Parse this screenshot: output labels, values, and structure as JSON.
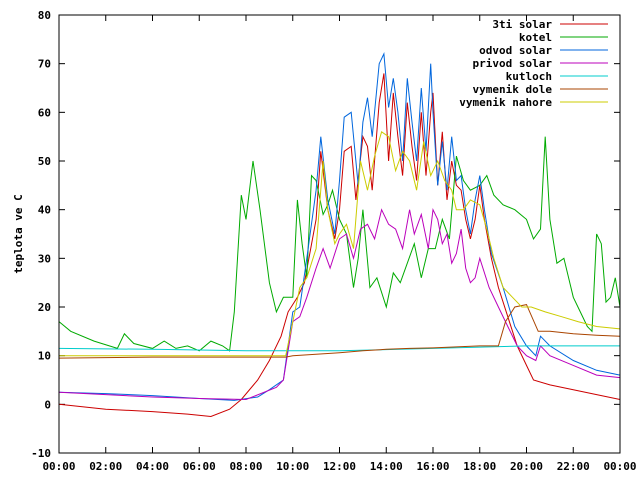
{
  "chart_data": {
    "type": "line",
    "title": "",
    "xlabel": "",
    "ylabel": "teplota ve C",
    "xlim": [
      0,
      24
    ],
    "ylim": [
      -10,
      80
    ],
    "x_tick_labels": [
      "00:00",
      "02:00",
      "04:00",
      "06:00",
      "08:00",
      "10:00",
      "12:00",
      "14:00",
      "16:00",
      "18:00",
      "20:00",
      "22:00",
      "00:00"
    ],
    "y_tick_labels": [
      "-10",
      "0",
      "10",
      "20",
      "30",
      "40",
      "50",
      "60",
      "70",
      "80"
    ],
    "grid": false,
    "legend_position": "top-right",
    "series": [
      {
        "name": "3ti solar",
        "color": "#cc0000",
        "points": [
          [
            0,
            0
          ],
          [
            2,
            -1
          ],
          [
            4,
            -1.5
          ],
          [
            5.5,
            -2
          ],
          [
            6.5,
            -2.5
          ],
          [
            7.3,
            -1
          ],
          [
            7.8,
            1
          ],
          [
            8.5,
            5
          ],
          [
            9,
            9
          ],
          [
            9.5,
            14
          ],
          [
            9.8,
            19
          ],
          [
            10.2,
            22
          ],
          [
            10.5,
            25
          ],
          [
            11,
            38
          ],
          [
            11.2,
            52
          ],
          [
            11.5,
            40
          ],
          [
            11.8,
            34
          ],
          [
            12,
            40
          ],
          [
            12.2,
            52
          ],
          [
            12.5,
            53
          ],
          [
            12.7,
            42
          ],
          [
            13,
            55
          ],
          [
            13.2,
            53
          ],
          [
            13.4,
            44
          ],
          [
            13.7,
            62
          ],
          [
            13.9,
            68
          ],
          [
            14.1,
            50
          ],
          [
            14.3,
            64
          ],
          [
            14.5,
            55
          ],
          [
            14.7,
            47
          ],
          [
            14.9,
            62
          ],
          [
            15.1,
            53
          ],
          [
            15.3,
            46
          ],
          [
            15.5,
            60
          ],
          [
            15.7,
            47
          ],
          [
            15.9,
            60
          ],
          [
            16,
            64
          ],
          [
            16.2,
            45
          ],
          [
            16.4,
            56
          ],
          [
            16.6,
            42
          ],
          [
            16.8,
            50
          ],
          [
            17,
            45
          ],
          [
            17.2,
            44
          ],
          [
            17.4,
            38
          ],
          [
            17.6,
            34
          ],
          [
            17.8,
            38
          ],
          [
            18,
            45
          ],
          [
            18.2,
            38
          ],
          [
            18.5,
            30
          ],
          [
            18.8,
            24
          ],
          [
            19.2,
            18
          ],
          [
            19.6,
            12
          ],
          [
            20,
            8
          ],
          [
            20.3,
            5
          ],
          [
            21,
            4
          ],
          [
            22,
            3
          ],
          [
            23,
            2
          ],
          [
            24,
            1
          ]
        ]
      },
      {
        "name": "kotel",
        "color": "#00aa00",
        "points": [
          [
            0,
            17
          ],
          [
            0.5,
            15
          ],
          [
            1.5,
            13
          ],
          [
            2.5,
            11.5
          ],
          [
            2.8,
            14.5
          ],
          [
            3.2,
            12.5
          ],
          [
            4,
            11.5
          ],
          [
            4.5,
            13
          ],
          [
            5,
            11.5
          ],
          [
            5.5,
            12
          ],
          [
            6,
            11
          ],
          [
            6.5,
            13
          ],
          [
            7,
            12
          ],
          [
            7.3,
            11
          ],
          [
            7.5,
            19
          ],
          [
            7.8,
            43
          ],
          [
            8,
            38
          ],
          [
            8.3,
            50
          ],
          [
            8.6,
            40
          ],
          [
            9,
            25
          ],
          [
            9.3,
            19
          ],
          [
            9.6,
            22
          ],
          [
            10,
            22
          ],
          [
            10.2,
            42
          ],
          [
            10.4,
            33
          ],
          [
            10.6,
            26
          ],
          [
            10.8,
            47
          ],
          [
            11,
            46
          ],
          [
            11.3,
            39
          ],
          [
            11.5,
            41
          ],
          [
            11.7,
            44
          ],
          [
            12,
            38
          ],
          [
            12.3,
            35
          ],
          [
            12.6,
            24
          ],
          [
            12.8,
            30
          ],
          [
            13,
            40
          ],
          [
            13.3,
            24
          ],
          [
            13.6,
            26
          ],
          [
            14,
            20
          ],
          [
            14.3,
            27
          ],
          [
            14.6,
            25
          ],
          [
            14.9,
            29
          ],
          [
            15.2,
            33
          ],
          [
            15.5,
            26
          ],
          [
            15.8,
            32
          ],
          [
            16.1,
            32
          ],
          [
            16.4,
            38
          ],
          [
            16.7,
            34
          ],
          [
            17,
            51
          ],
          [
            17.3,
            46
          ],
          [
            17.6,
            44
          ],
          [
            18,
            45
          ],
          [
            18.3,
            47
          ],
          [
            18.6,
            43
          ],
          [
            19,
            41
          ],
          [
            19.5,
            40
          ],
          [
            20,
            38
          ],
          [
            20.3,
            34
          ],
          [
            20.6,
            36
          ],
          [
            20.8,
            55
          ],
          [
            21,
            38
          ],
          [
            21.3,
            29
          ],
          [
            21.6,
            30
          ],
          [
            22,
            22
          ],
          [
            22.3,
            19
          ],
          [
            22.6,
            16
          ],
          [
            22.8,
            15
          ],
          [
            23,
            35
          ],
          [
            23.2,
            33
          ],
          [
            23.4,
            21
          ],
          [
            23.6,
            22
          ],
          [
            23.8,
            26
          ],
          [
            24,
            20
          ]
        ]
      },
      {
        "name": "odvod solar",
        "color": "#0066dd",
        "points": [
          [
            0,
            2.5
          ],
          [
            2,
            2.2
          ],
          [
            4,
            1.8
          ],
          [
            6,
            1.2
          ],
          [
            7.5,
            0.8
          ],
          [
            8.5,
            1.5
          ],
          [
            9,
            3
          ],
          [
            9.6,
            5
          ],
          [
            10,
            19
          ],
          [
            10.3,
            20
          ],
          [
            10.6,
            30
          ],
          [
            11,
            44
          ],
          [
            11.2,
            55
          ],
          [
            11.5,
            42
          ],
          [
            11.8,
            35
          ],
          [
            12,
            46
          ],
          [
            12.2,
            59
          ],
          [
            12.5,
            60
          ],
          [
            12.8,
            45
          ],
          [
            13,
            58
          ],
          [
            13.2,
            63
          ],
          [
            13.4,
            55
          ],
          [
            13.7,
            70
          ],
          [
            13.9,
            72
          ],
          [
            14.1,
            61
          ],
          [
            14.3,
            67
          ],
          [
            14.5,
            60
          ],
          [
            14.7,
            50
          ],
          [
            14.9,
            67
          ],
          [
            15.1,
            58
          ],
          [
            15.3,
            50
          ],
          [
            15.5,
            65
          ],
          [
            15.7,
            52
          ],
          [
            15.9,
            70
          ],
          [
            16,
            60
          ],
          [
            16.2,
            45
          ],
          [
            16.4,
            54
          ],
          [
            16.6,
            44
          ],
          [
            16.8,
            55
          ],
          [
            17,
            46
          ],
          [
            17.2,
            47
          ],
          [
            17.4,
            40
          ],
          [
            17.6,
            35
          ],
          [
            17.8,
            42
          ],
          [
            18,
            47
          ],
          [
            18.2,
            40
          ],
          [
            18.5,
            31
          ],
          [
            19,
            24
          ],
          [
            19.5,
            16
          ],
          [
            20,
            12
          ],
          [
            20.4,
            10
          ],
          [
            20.6,
            14
          ],
          [
            21,
            12
          ],
          [
            22,
            9
          ],
          [
            23,
            7
          ],
          [
            24,
            6
          ]
        ]
      },
      {
        "name": "privod solar",
        "color": "#bb00bb",
        "points": [
          [
            0,
            2.5
          ],
          [
            2,
            2
          ],
          [
            4,
            1.5
          ],
          [
            6,
            1.2
          ],
          [
            8,
            1
          ],
          [
            9.3,
            3.5
          ],
          [
            9.6,
            5
          ],
          [
            10,
            17
          ],
          [
            10.3,
            18
          ],
          [
            10.6,
            22
          ],
          [
            11,
            28
          ],
          [
            11.3,
            32
          ],
          [
            11.6,
            28
          ],
          [
            12,
            34
          ],
          [
            12.3,
            35
          ],
          [
            12.6,
            30
          ],
          [
            12.9,
            36
          ],
          [
            13.2,
            37
          ],
          [
            13.5,
            34
          ],
          [
            13.8,
            40
          ],
          [
            14.1,
            37
          ],
          [
            14.4,
            36
          ],
          [
            14.7,
            32
          ],
          [
            15,
            40
          ],
          [
            15.2,
            35
          ],
          [
            15.5,
            39
          ],
          [
            15.8,
            32
          ],
          [
            16,
            40
          ],
          [
            16.2,
            38
          ],
          [
            16.4,
            33
          ],
          [
            16.6,
            35
          ],
          [
            16.8,
            29
          ],
          [
            17,
            31
          ],
          [
            17.2,
            36
          ],
          [
            17.4,
            28
          ],
          [
            17.6,
            25
          ],
          [
            17.8,
            26
          ],
          [
            18,
            30
          ],
          [
            18.4,
            24
          ],
          [
            18.8,
            20
          ],
          [
            19.2,
            16
          ],
          [
            19.6,
            12
          ],
          [
            20,
            10
          ],
          [
            20.4,
            9
          ],
          [
            20.6,
            12
          ],
          [
            21,
            10
          ],
          [
            22,
            8
          ],
          [
            23,
            6
          ],
          [
            24,
            5.5
          ]
        ]
      },
      {
        "name": "kutloch",
        "color": "#00cccc",
        "points": [
          [
            0,
            11.5
          ],
          [
            4,
            11.3
          ],
          [
            8,
            11
          ],
          [
            12,
            11
          ],
          [
            16,
            11.5
          ],
          [
            20,
            12
          ],
          [
            24,
            12
          ]
        ]
      },
      {
        "name": "vymenik dole",
        "color": "#aa4400",
        "points": [
          [
            0,
            9.5
          ],
          [
            2,
            9.6
          ],
          [
            4,
            9.7
          ],
          [
            6,
            9.7
          ],
          [
            8,
            9.7
          ],
          [
            9.7,
            9.7
          ],
          [
            10,
            10
          ],
          [
            11,
            10.3
          ],
          [
            12,
            10.6
          ],
          [
            13,
            11
          ],
          [
            14,
            11.3
          ],
          [
            15,
            11.5
          ],
          [
            16,
            11.6
          ],
          [
            17,
            11.8
          ],
          [
            18,
            12
          ],
          [
            18.8,
            12
          ],
          [
            19.1,
            17
          ],
          [
            19.5,
            20
          ],
          [
            20,
            20.5
          ],
          [
            20.5,
            15
          ],
          [
            21,
            15
          ],
          [
            22,
            14.5
          ],
          [
            23,
            14.2
          ],
          [
            24,
            14
          ]
        ]
      },
      {
        "name": "vymenik nahore",
        "color": "#cccc00",
        "points": [
          [
            0,
            10
          ],
          [
            4,
            10
          ],
          [
            8,
            10
          ],
          [
            9.7,
            10
          ],
          [
            10,
            17
          ],
          [
            10.3,
            24
          ],
          [
            10.6,
            26
          ],
          [
            11,
            32
          ],
          [
            11.3,
            50
          ],
          [
            11.5,
            40
          ],
          [
            11.8,
            33
          ],
          [
            12,
            35
          ],
          [
            12.3,
            37
          ],
          [
            12.6,
            32
          ],
          [
            12.9,
            50
          ],
          [
            13.2,
            44
          ],
          [
            13.5,
            51
          ],
          [
            13.8,
            56
          ],
          [
            14.1,
            55
          ],
          [
            14.4,
            48
          ],
          [
            14.7,
            52
          ],
          [
            15,
            50
          ],
          [
            15.3,
            44
          ],
          [
            15.6,
            54
          ],
          [
            15.9,
            47
          ],
          [
            16.2,
            50
          ],
          [
            16.5,
            46
          ],
          [
            16.8,
            44
          ],
          [
            17,
            40
          ],
          [
            17.3,
            40
          ],
          [
            17.6,
            42
          ],
          [
            18,
            41
          ],
          [
            18.3,
            36
          ],
          [
            18.6,
            30
          ],
          [
            19,
            24
          ],
          [
            19.4,
            22
          ],
          [
            19.8,
            20
          ],
          [
            20.2,
            20
          ],
          [
            20.8,
            19
          ],
          [
            21.5,
            18
          ],
          [
            22.2,
            17
          ],
          [
            23,
            16
          ],
          [
            24,
            15.5
          ]
        ]
      }
    ]
  }
}
